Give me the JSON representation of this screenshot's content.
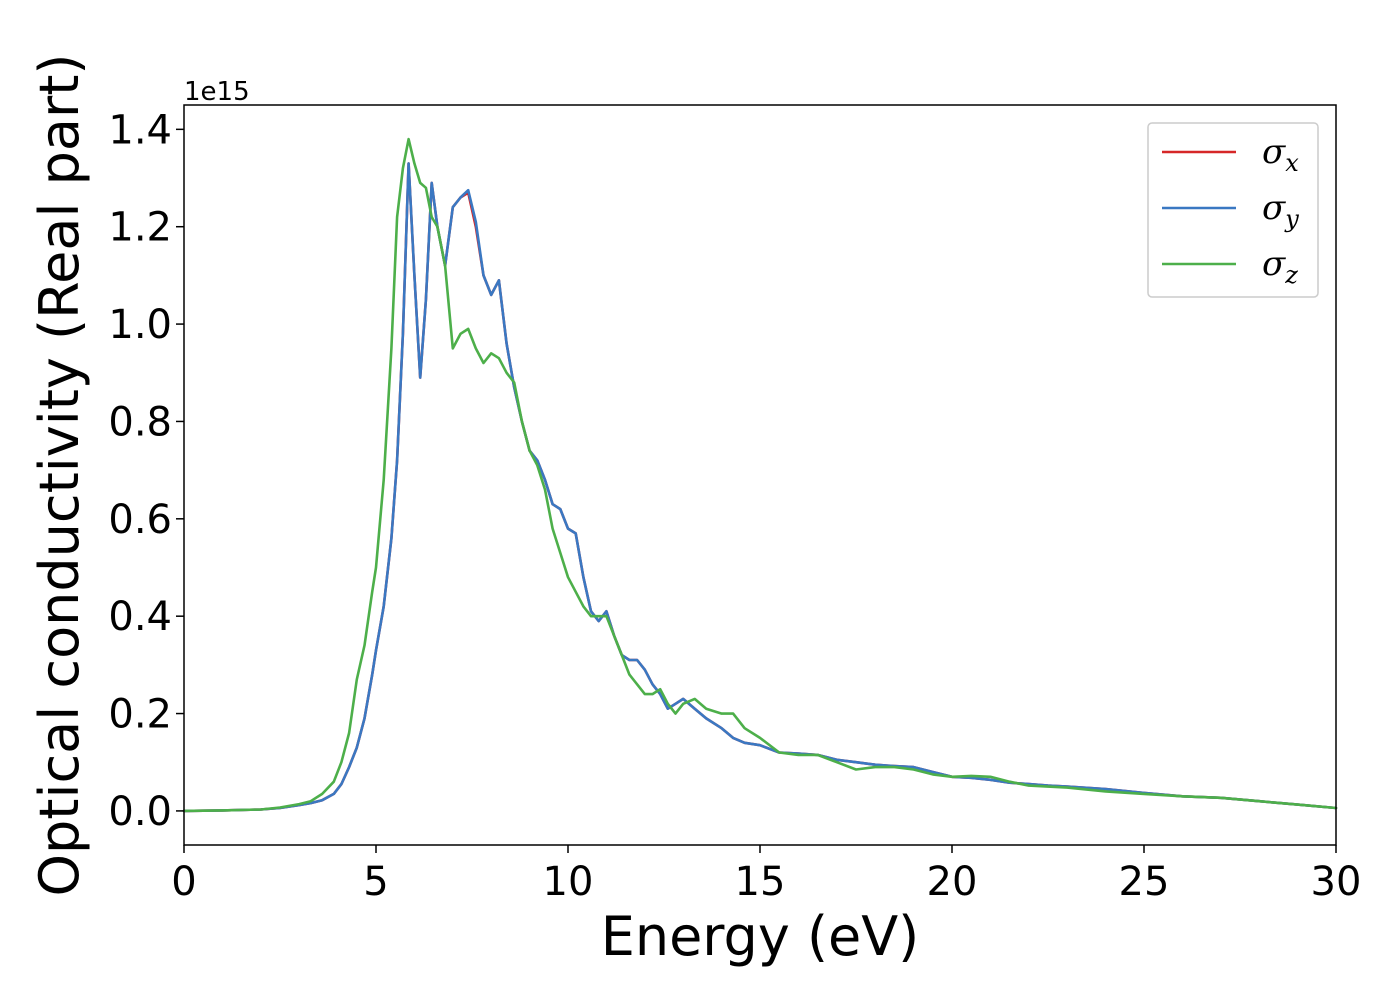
{
  "chart_data": {
    "type": "line",
    "title": "",
    "xlabel": "Energy (eV)",
    "ylabel": "Optical conductivity (Real part)",
    "y_offset_label": "1e15",
    "xlim": [
      0,
      30
    ],
    "ylim": [
      -0.07,
      1.45
    ],
    "x_ticks": [
      0,
      5,
      10,
      15,
      20,
      25,
      30
    ],
    "y_ticks": [
      0.0,
      0.2,
      0.4,
      0.6,
      0.8,
      1.0,
      1.2,
      1.4
    ],
    "y_tick_labels": [
      "0.0",
      "0.2",
      "0.4",
      "0.6",
      "0.8",
      "1.0",
      "1.2",
      "1.4"
    ],
    "grid": false,
    "legend_position": "top-right",
    "series": [
      {
        "name": "σx",
        "legend_symbol": "σ",
        "legend_subscript": "x",
        "color": "#d62728",
        "x": [
          0,
          1,
          2,
          2.5,
          3,
          3.3,
          3.6,
          3.9,
          4.1,
          4.3,
          4.5,
          4.7,
          4.9,
          5.0,
          5.2,
          5.4,
          5.55,
          5.7,
          5.85,
          6.0,
          6.15,
          6.3,
          6.45,
          6.6,
          6.8,
          7.0,
          7.2,
          7.4,
          7.6,
          7.8,
          8.0,
          8.2,
          8.4,
          8.6,
          8.8,
          9.0,
          9.2,
          9.4,
          9.6,
          9.8,
          10.0,
          10.2,
          10.4,
          10.6,
          10.8,
          11.0,
          11.2,
          11.4,
          11.6,
          11.8,
          12.0,
          12.2,
          12.4,
          12.6,
          12.8,
          13.0,
          13.3,
          13.6,
          14.0,
          14.3,
          14.6,
          15.0,
          15.5,
          16.0,
          16.5,
          17.0,
          17.5,
          18.0,
          18.5,
          19.0,
          19.5,
          20.0,
          20.5,
          21.0,
          21.5,
          22.0,
          22.5,
          23.0,
          24.0,
          25.0,
          26.0,
          27.0,
          28.0,
          29.0,
          30.0
        ],
        "y": [
          0.0,
          0.001,
          0.003,
          0.006,
          0.012,
          0.016,
          0.022,
          0.035,
          0.055,
          0.09,
          0.13,
          0.19,
          0.28,
          0.33,
          0.42,
          0.56,
          0.72,
          0.98,
          1.33,
          1.1,
          0.89,
          1.05,
          1.29,
          1.2,
          1.12,
          1.24,
          1.26,
          1.27,
          1.2,
          1.1,
          1.06,
          1.09,
          0.96,
          0.87,
          0.8,
          0.74,
          0.72,
          0.68,
          0.63,
          0.62,
          0.58,
          0.57,
          0.48,
          0.41,
          0.39,
          0.41,
          0.36,
          0.32,
          0.31,
          0.31,
          0.29,
          0.26,
          0.24,
          0.21,
          0.22,
          0.23,
          0.21,
          0.19,
          0.17,
          0.15,
          0.14,
          0.135,
          0.12,
          0.118,
          0.115,
          0.105,
          0.1,
          0.095,
          0.092,
          0.09,
          0.08,
          0.07,
          0.068,
          0.064,
          0.058,
          0.055,
          0.052,
          0.05,
          0.045,
          0.037,
          0.03,
          0.027,
          0.02,
          0.013,
          0.006
        ]
      },
      {
        "name": "σy",
        "legend_symbol": "σ",
        "legend_subscript": "y",
        "color": "#3a78c2",
        "x": [
          0,
          1,
          2,
          2.5,
          3,
          3.3,
          3.6,
          3.9,
          4.1,
          4.3,
          4.5,
          4.7,
          4.9,
          5.0,
          5.2,
          5.4,
          5.55,
          5.7,
          5.85,
          6.0,
          6.15,
          6.3,
          6.45,
          6.6,
          6.8,
          7.0,
          7.2,
          7.4,
          7.6,
          7.8,
          8.0,
          8.2,
          8.4,
          8.6,
          8.8,
          9.0,
          9.2,
          9.4,
          9.6,
          9.8,
          10.0,
          10.2,
          10.4,
          10.6,
          10.8,
          11.0,
          11.2,
          11.4,
          11.6,
          11.8,
          12.0,
          12.2,
          12.4,
          12.6,
          12.8,
          13.0,
          13.3,
          13.6,
          14.0,
          14.3,
          14.6,
          15.0,
          15.5,
          16.0,
          16.5,
          17.0,
          17.5,
          18.0,
          18.5,
          19.0,
          19.5,
          20.0,
          20.5,
          21.0,
          21.5,
          22.0,
          22.5,
          23.0,
          24.0,
          25.0,
          26.0,
          27.0,
          28.0,
          29.0,
          30.0
        ],
        "y": [
          0.0,
          0.001,
          0.003,
          0.006,
          0.012,
          0.016,
          0.022,
          0.035,
          0.055,
          0.09,
          0.13,
          0.19,
          0.28,
          0.33,
          0.42,
          0.56,
          0.72,
          0.98,
          1.33,
          1.1,
          0.89,
          1.05,
          1.29,
          1.2,
          1.12,
          1.24,
          1.26,
          1.275,
          1.21,
          1.1,
          1.06,
          1.09,
          0.96,
          0.87,
          0.8,
          0.74,
          0.72,
          0.68,
          0.63,
          0.62,
          0.58,
          0.57,
          0.48,
          0.41,
          0.39,
          0.41,
          0.36,
          0.32,
          0.31,
          0.31,
          0.29,
          0.26,
          0.24,
          0.21,
          0.22,
          0.23,
          0.21,
          0.19,
          0.17,
          0.15,
          0.14,
          0.135,
          0.12,
          0.118,
          0.115,
          0.105,
          0.1,
          0.095,
          0.092,
          0.09,
          0.08,
          0.07,
          0.068,
          0.064,
          0.058,
          0.055,
          0.052,
          0.05,
          0.045,
          0.037,
          0.03,
          0.027,
          0.02,
          0.013,
          0.006
        ]
      },
      {
        "name": "σz",
        "legend_symbol": "σ",
        "legend_subscript": "z",
        "color": "#4daf4a",
        "x": [
          0,
          1,
          2,
          2.5,
          3,
          3.3,
          3.6,
          3.9,
          4.1,
          4.3,
          4.5,
          4.7,
          4.9,
          5.0,
          5.2,
          5.4,
          5.55,
          5.7,
          5.85,
          6.0,
          6.15,
          6.3,
          6.45,
          6.6,
          6.8,
          7.0,
          7.2,
          7.4,
          7.6,
          7.8,
          8.0,
          8.2,
          8.4,
          8.6,
          8.8,
          9.0,
          9.2,
          9.4,
          9.6,
          9.8,
          10.0,
          10.2,
          10.4,
          10.6,
          10.8,
          11.0,
          11.2,
          11.4,
          11.6,
          11.8,
          12.0,
          12.2,
          12.4,
          12.6,
          12.8,
          13.0,
          13.3,
          13.6,
          14.0,
          14.3,
          14.6,
          15.0,
          15.5,
          16.0,
          16.5,
          17.0,
          17.5,
          18.0,
          18.5,
          19.0,
          19.5,
          20.0,
          20.5,
          21.0,
          21.5,
          22.0,
          22.5,
          23.0,
          24.0,
          25.0,
          26.0,
          27.0,
          28.0,
          29.0,
          30.0
        ],
        "y": [
          0.0,
          0.001,
          0.003,
          0.007,
          0.014,
          0.02,
          0.035,
          0.06,
          0.1,
          0.16,
          0.27,
          0.34,
          0.45,
          0.5,
          0.68,
          0.95,
          1.22,
          1.32,
          1.38,
          1.33,
          1.29,
          1.28,
          1.22,
          1.2,
          1.12,
          0.95,
          0.98,
          0.99,
          0.95,
          0.92,
          0.94,
          0.93,
          0.9,
          0.88,
          0.8,
          0.74,
          0.71,
          0.66,
          0.58,
          0.53,
          0.48,
          0.45,
          0.42,
          0.4,
          0.4,
          0.4,
          0.36,
          0.32,
          0.28,
          0.26,
          0.24,
          0.24,
          0.25,
          0.22,
          0.2,
          0.22,
          0.23,
          0.21,
          0.2,
          0.2,
          0.17,
          0.15,
          0.12,
          0.115,
          0.115,
          0.1,
          0.085,
          0.09,
          0.09,
          0.085,
          0.075,
          0.07,
          0.072,
          0.07,
          0.06,
          0.052,
          0.05,
          0.048,
          0.04,
          0.035,
          0.03,
          0.027,
          0.02,
          0.013,
          0.006
        ]
      }
    ]
  }
}
